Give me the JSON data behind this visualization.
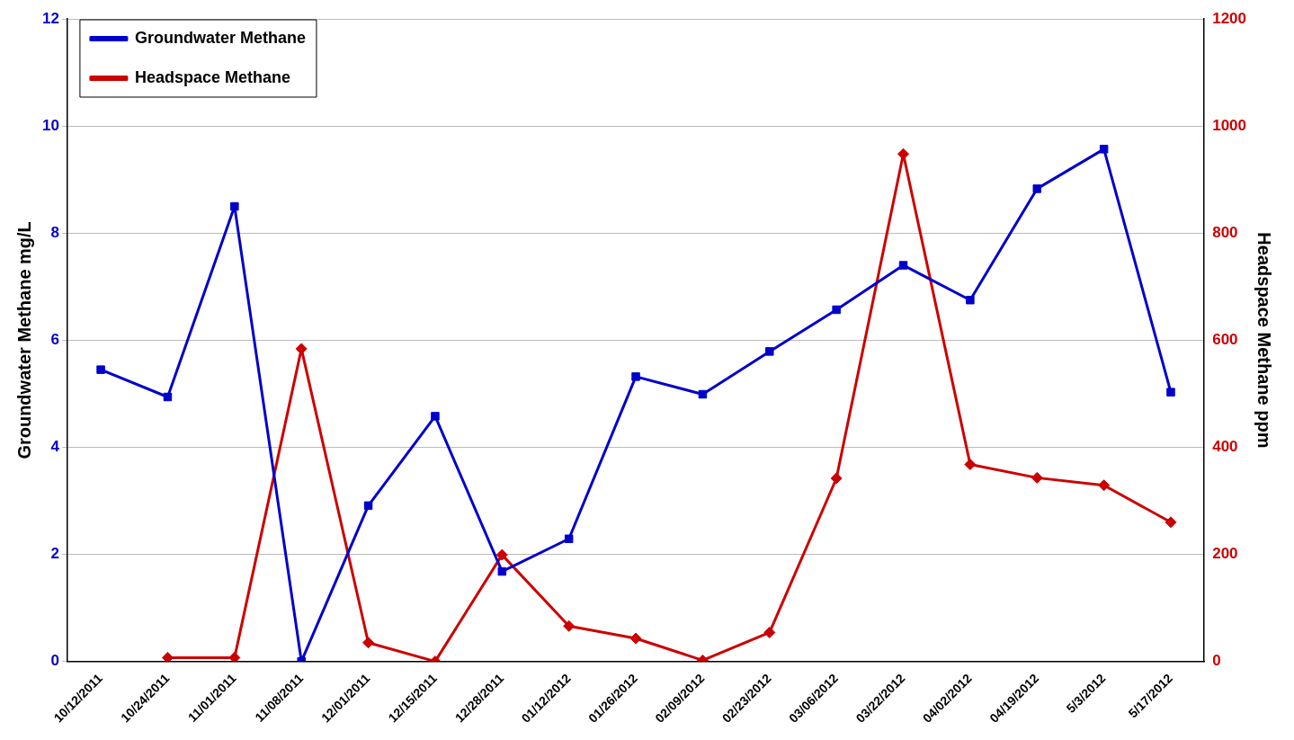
{
  "chart_data": {
    "type": "line",
    "xlabel": null,
    "ylabel": "Groundwater Methane mg/L",
    "y2label": "Headspace Methane ppm",
    "categories": [
      "10/12/2011",
      "10/24/2011",
      "11/01/2011",
      "11/08/2011",
      "12/01/2011",
      "12/15/2011",
      "12/28/2011",
      "01/12/2012",
      "01/26/2012",
      "02/09/2012",
      "02/23/2012",
      "03/06/2012",
      "03/22/2012",
      "04/02/2012",
      "04/19/2012",
      "5/3/2012",
      "5/17/2012"
    ],
    "series": [
      {
        "name": "Groundwater Methane",
        "color": "#0000cc",
        "marker": "square",
        "values": [
          5.45,
          4.94,
          8.5,
          0.0,
          2.91,
          4.58,
          1.68,
          2.29,
          5.32,
          4.99,
          5.79,
          6.57,
          7.4,
          6.75,
          8.83,
          9.57,
          5.03
        ]
      },
      {
        "name": "Headspace Methane",
        "color": "#cc0000",
        "marker": "diamond",
        "axis": "y2",
        "values": [
          null,
          7,
          7,
          584,
          35,
          0,
          199,
          66,
          43,
          2,
          54,
          342,
          948,
          368,
          343,
          329,
          260
        ]
      }
    ],
    "ylim": [
      0,
      12
    ],
    "yticks": [
      0,
      2,
      4,
      6,
      8,
      10,
      12
    ],
    "y2lim": [
      0,
      1200
    ],
    "y2ticks": [
      0,
      200,
      400,
      600,
      800,
      1000,
      1200
    ],
    "grid": "y",
    "legend": "top left",
    "line_style": "solid"
  }
}
